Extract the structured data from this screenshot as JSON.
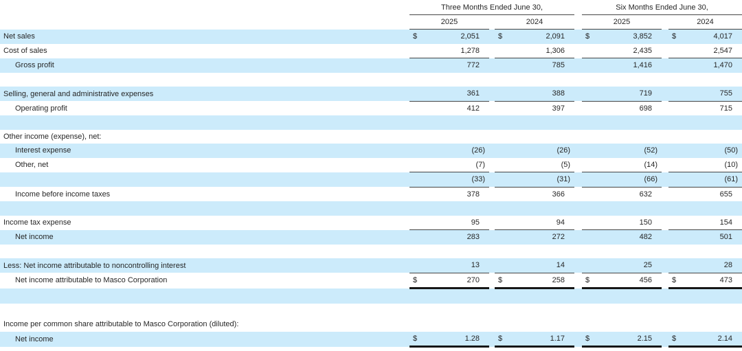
{
  "colors": {
    "stripe": "#ccebfb",
    "text": "#262626",
    "rule": "#454545",
    "heavy_rule": "#161616"
  },
  "table": {
    "dollar_sign": "$",
    "col_groups": [
      {
        "label": "Three Months Ended June 30,",
        "years": [
          "2025",
          "2024"
        ]
      },
      {
        "label": "Six Months Ended June 30,",
        "years": [
          "2025",
          "2024"
        ]
      }
    ],
    "rows": [
      {
        "label": "Net sales",
        "indent": 0,
        "bg": "blue",
        "dollar": true,
        "values": [
          "2,051",
          "2,091",
          "3,852",
          "4,017"
        ]
      },
      {
        "label": "Cost of sales",
        "indent": 0,
        "bg": "white",
        "values": [
          "1,278",
          "1,306",
          "2,435",
          "2,547"
        ]
      },
      {
        "label": "Gross profit",
        "indent": 1,
        "bg": "blue",
        "values": [
          "772",
          "785",
          "1,416",
          "1,470"
        ],
        "top_border": true
      },
      {
        "bg": "white"
      },
      {
        "label": "Selling, general and administrative expenses",
        "indent": 0,
        "bg": "blue",
        "values": [
          "361",
          "388",
          "719",
          "755"
        ]
      },
      {
        "label": "Operating profit",
        "indent": 1,
        "bg": "white",
        "values": [
          "412",
          "397",
          "698",
          "715"
        ],
        "top_border": true
      },
      {
        "bg": "blue"
      },
      {
        "label": "Other income (expense), net:",
        "indent": 0,
        "bg": "white"
      },
      {
        "label": "Interest expense",
        "indent": 1,
        "bg": "blue",
        "values": [
          "(26)",
          "(26)",
          "(52)",
          "(50)"
        ]
      },
      {
        "label": "Other, net",
        "indent": 1,
        "bg": "white",
        "values": [
          "(7)",
          "(5)",
          "(14)",
          "(10)"
        ]
      },
      {
        "bg": "blue",
        "values": [
          "(33)",
          "(31)",
          "(66)",
          "(61)"
        ],
        "top_border": true
      },
      {
        "label": "Income before income taxes",
        "indent": 1,
        "bg": "white",
        "values": [
          "378",
          "366",
          "632",
          "655"
        ],
        "top_border": true
      },
      {
        "bg": "blue"
      },
      {
        "label": "Income tax expense",
        "indent": 0,
        "bg": "white",
        "values": [
          "95",
          "94",
          "150",
          "154"
        ]
      },
      {
        "label": "Net income",
        "indent": 1,
        "bg": "blue",
        "values": [
          "283",
          "272",
          "482",
          "501"
        ],
        "top_border": true
      },
      {
        "bg": "white"
      },
      {
        "label": "Less: Net income attributable to noncontrolling interest",
        "indent": 0,
        "bg": "blue",
        "values": [
          "13",
          "14",
          "25",
          "28"
        ]
      },
      {
        "label": "Net income attributable to Masco Corporation",
        "indent": 1,
        "bg": "white",
        "dollar": true,
        "values": [
          "270",
          "258",
          "456",
          "473"
        ],
        "top_border": true,
        "bottom_heavy": true
      },
      {
        "bg": "blue"
      },
      {
        "bg": "white"
      },
      {
        "label": "Income per common share attributable to Masco Corporation (diluted):",
        "indent": 0,
        "bg": "white"
      },
      {
        "label": "Net income",
        "indent": 1,
        "bg": "blue",
        "dollar": true,
        "values": [
          "1.28",
          "1.17",
          "2.15",
          "2.14"
        ],
        "bottom_heavy": true
      }
    ]
  }
}
